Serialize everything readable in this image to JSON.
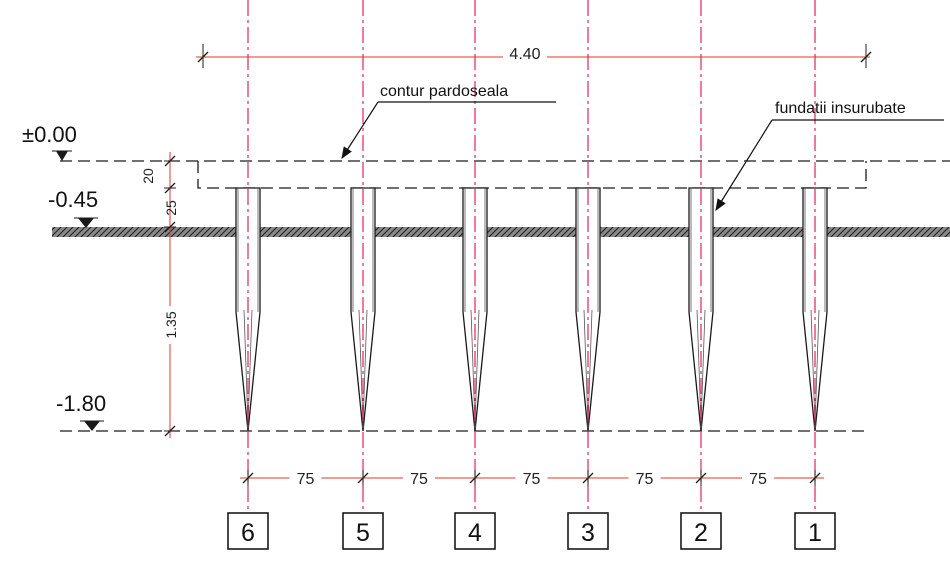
{
  "levels": [
    {
      "label": "±0.00"
    },
    {
      "label": "-0.45"
    },
    {
      "label": "-1.80"
    }
  ],
  "top_dimension": "4.40",
  "vertical_dimensions": [
    "20",
    "25",
    "1.35"
  ],
  "spacing_dimensions": [
    "75",
    "75",
    "75",
    "75",
    "75"
  ],
  "axis_labels": [
    "6",
    "5",
    "4",
    "3",
    "2",
    "1"
  ],
  "annotations": {
    "floor_outline": "contur pardoseala",
    "screw_foundations": "fundatii insurubate"
  },
  "colors": {
    "axis_line": "#e0245e",
    "dimension_line": "#e0392a",
    "drawing_line": "#1a1a1a",
    "ground_hatch": "#555555"
  }
}
